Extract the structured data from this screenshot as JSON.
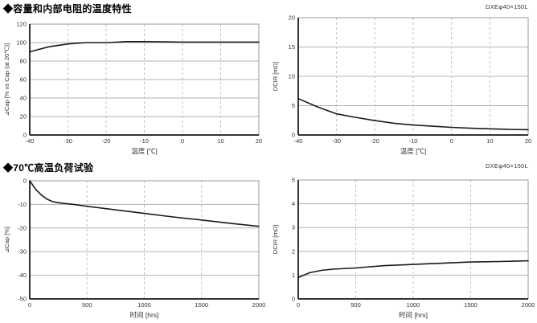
{
  "sections": [
    {
      "title": "◆容量和内部电阻的温度特性",
      "model_label": "DXEφ40×150L"
    },
    {
      "title": "◆70℃高温负荷试验",
      "model_label": "DXEφ40×150L"
    }
  ],
  "colors": {
    "curve": "#1a1a1a",
    "frame": "#999999",
    "grid_h": "#b0b0b0",
    "grid_v": "#c0c0c0",
    "axis": "#333333",
    "tick_text": "#333333",
    "title_text": "#000000"
  },
  "chart_data": [
    {
      "id": "cap-vs-temperature",
      "type": "line",
      "title": "",
      "xlabel": "温度 [℃]",
      "ylabel": "⊿Cap [% vs Cap (at 20℃)]",
      "xlim": [
        -40,
        20
      ],
      "xticks": [
        -40,
        -30,
        -20,
        -10,
        0,
        10,
        20
      ],
      "ylim": [
        0,
        120
      ],
      "yticks": [
        0,
        20,
        40,
        60,
        80,
        100,
        120
      ],
      "grid": "h-solid v-dashed",
      "legend": "none",
      "x": [
        -40,
        -35,
        -30,
        -27,
        -25,
        -20,
        -17,
        -15,
        -10,
        -5,
        0,
        5,
        10,
        15,
        20
      ],
      "y": [
        90,
        95.5,
        98.5,
        99.5,
        100,
        100,
        100.5,
        101,
        101,
        100.8,
        100.5,
        100.5,
        100.5,
        100.5,
        100.5
      ]
    },
    {
      "id": "dcir-vs-temperature",
      "type": "line",
      "title": "",
      "xlabel": "温度 [℃]",
      "ylabel": "DCIR [mΩ]",
      "xlim": [
        -40,
        20
      ],
      "xticks": [
        -40,
        -30,
        -20,
        -10,
        0,
        10,
        20
      ],
      "ylim": [
        0,
        20
      ],
      "yticks": [
        0,
        5,
        10,
        15,
        20
      ],
      "grid": "h-solid v-dashed",
      "legend": "none",
      "x": [
        -40,
        -35,
        -30,
        -25,
        -20,
        -15,
        -10,
        -5,
        0,
        5,
        10,
        15,
        20
      ],
      "y": [
        6.2,
        4.8,
        3.6,
        3.0,
        2.45,
        2.0,
        1.7,
        1.5,
        1.3,
        1.15,
        1.05,
        0.95,
        0.9
      ]
    },
    {
      "id": "cap-vs-time-70c-load",
      "type": "line",
      "title": "",
      "xlabel": "时间 [hrs]",
      "ylabel": "⊿Cap [%]",
      "xlim": [
        0,
        2000
      ],
      "xticks": [
        0,
        500,
        1000,
        1500,
        2000
      ],
      "ylim": [
        -50,
        0
      ],
      "yticks": [
        -50,
        -40,
        -30,
        -20,
        -10,
        0
      ],
      "grid": "h-solid v-dashed",
      "legend": "none",
      "x": [
        0,
        50,
        100,
        150,
        200,
        250,
        300,
        400,
        500,
        600,
        750,
        1000,
        1250,
        1500,
        1750,
        2000
      ],
      "y": [
        0,
        -3.5,
        -6,
        -7.8,
        -8.8,
        -9.3,
        -9.6,
        -10.1,
        -10.8,
        -11.4,
        -12.3,
        -13.8,
        -15.3,
        -16.6,
        -18,
        -19.3
      ]
    },
    {
      "id": "dcir-vs-time-70c-load",
      "type": "line",
      "title": "",
      "xlabel": "时间 [hrs]",
      "ylabel": "DCIR [mΩ]",
      "xlim": [
        0,
        2000
      ],
      "xticks": [
        0,
        500,
        1000,
        1500,
        2000
      ],
      "ylim": [
        0,
        5
      ],
      "yticks": [
        0,
        1,
        2,
        3,
        4,
        5
      ],
      "grid": "h-solid v-dashed",
      "legend": "none",
      "x": [
        0,
        50,
        100,
        200,
        300,
        500,
        750,
        1000,
        1250,
        1500,
        1750,
        2000
      ],
      "y": [
        0.9,
        1.0,
        1.1,
        1.2,
        1.25,
        1.3,
        1.4,
        1.45,
        1.5,
        1.55,
        1.57,
        1.6
      ]
    }
  ]
}
